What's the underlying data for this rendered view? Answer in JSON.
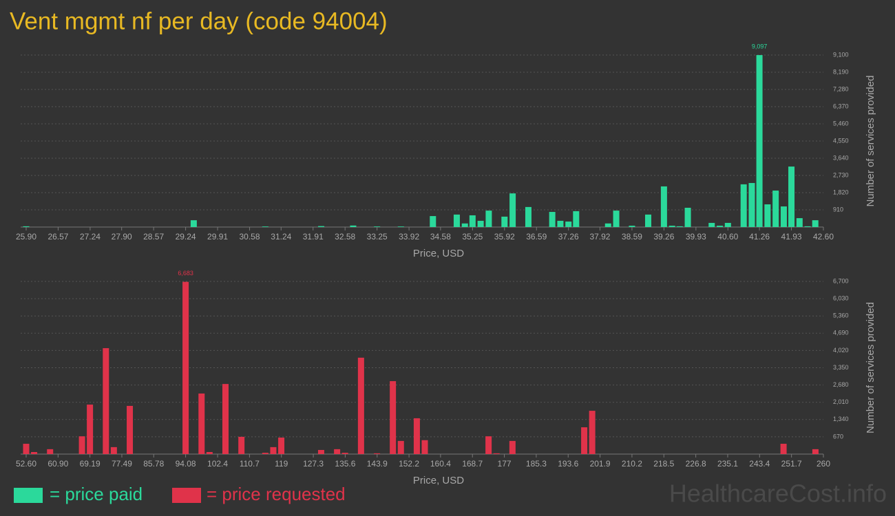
{
  "title": "Vent mgmt nf per day (code 94004)",
  "watermark": "HealthcareCost.info",
  "chart_data": [
    {
      "type": "bar",
      "x_label": "Price, USD",
      "y_label": "Number of services provided",
      "x": [
        25.9,
        29.41,
        30.91,
        32.08,
        32.75,
        33.25,
        33.75,
        34.42,
        34.92,
        35.09,
        35.25,
        35.42,
        35.59,
        35.92,
        36.09,
        36.42,
        36.92,
        37.09,
        37.26,
        37.42,
        38.09,
        38.26,
        38.59,
        38.93,
        39.26,
        39.43,
        39.59,
        39.76,
        40.26,
        40.43,
        40.6,
        40.93,
        41.1,
        41.26,
        41.43,
        41.6,
        41.77,
        41.93,
        42.1,
        42.27,
        42.43
      ],
      "series": [
        {
          "name": "= price paid",
          "color": "#2bd99b",
          "values": [
            40,
            360,
            30,
            50,
            80,
            30,
            30,
            580,
            660,
            190,
            620,
            330,
            870,
            550,
            1780,
            1060,
            800,
            330,
            290,
            840,
            190,
            870,
            70,
            660,
            2150,
            70,
            40,
            1020,
            220,
            70,
            220,
            2260,
            2330,
            9097,
            1200,
            1930,
            1090,
            3200,
            470,
            40,
            360
          ],
          "value_labels": [
            null,
            null,
            null,
            null,
            null,
            null,
            null,
            null,
            null,
            null,
            null,
            null,
            null,
            null,
            null,
            null,
            null,
            null,
            null,
            null,
            null,
            null,
            null,
            null,
            null,
            null,
            null,
            null,
            null,
            null,
            null,
            null,
            null,
            "9,097",
            null,
            null,
            null,
            null,
            null,
            null,
            null
          ]
        }
      ],
      "xlim": [
        25.9,
        42.6
      ],
      "xticks": [
        {
          "value": 25.9,
          "label": "25.90"
        },
        26.57,
        27.24,
        {
          "value": 27.9,
          "label": "27.90"
        },
        28.57,
        29.24,
        29.91,
        30.58,
        31.24,
        31.91,
        32.58,
        33.25,
        33.92,
        34.58,
        35.25,
        35.92,
        36.59,
        37.26,
        37.92,
        38.59,
        39.26,
        39.93,
        {
          "value": 40.6,
          "label": "40.60"
        },
        41.26,
        41.93,
        {
          "value": 42.6,
          "label": "42.60"
        }
      ],
      "ylim": [
        0,
        9100
      ],
      "yticks": [
        910,
        {
          "value": 1820,
          "label": "1,820"
        },
        {
          "value": 2730,
          "label": "2,730"
        },
        {
          "value": 3640,
          "label": "3,640"
        },
        {
          "value": 4550,
          "label": "4,550"
        },
        {
          "value": 5460,
          "label": "5,460"
        },
        {
          "value": 6370,
          "label": "6,370"
        },
        {
          "value": 7280,
          "label": "7,280"
        },
        {
          "value": 8190,
          "label": "8,190"
        },
        {
          "value": 9100,
          "label": "9,100"
        }
      ],
      "grid": true
    },
    {
      "type": "bar",
      "x_label": "Price, USD",
      "y_label": "Number of services provided",
      "x": [
        52.6,
        54.67,
        58.82,
        67.12,
        69.19,
        73.34,
        75.41,
        79.56,
        94.08,
        98.23,
        100.3,
        104.45,
        108.6,
        114.82,
        116.89,
        118.97,
        129.34,
        133.49,
        135.56,
        139.71,
        143.86,
        148.0,
        150.08,
        154.23,
        156.3,
        172.89,
        174.97,
        179.11,
        197.78,
        199.85,
        249.63,
        257.93
      ],
      "series": [
        {
          "name": "= price requested",
          "color": "#e0334a",
          "values": [
            400,
            80,
            190,
            690,
            1920,
            4110,
            270,
            1870,
            6683,
            2350,
            80,
            2720,
            670,
            50,
            270,
            640,
            160,
            190,
            50,
            3740,
            30,
            2830,
            510,
            1390,
            540,
            690,
            30,
            510,
            1040,
            1680,
            400,
            190
          ],
          "value_labels": [
            null,
            null,
            null,
            null,
            null,
            null,
            null,
            null,
            "6,683",
            null,
            null,
            null,
            null,
            null,
            null,
            null,
            null,
            null,
            null,
            null,
            null,
            null,
            null,
            null,
            null,
            null,
            null,
            null,
            null,
            null,
            null,
            null
          ]
        }
      ],
      "xlim": [
        52.6,
        260
      ],
      "xticks": [
        {
          "value": 52.6,
          "label": "52.60"
        },
        {
          "value": 60.9,
          "label": "60.90"
        },
        69.19,
        77.49,
        85.78,
        94.08,
        102.4,
        110.7,
        119,
        127.3,
        135.6,
        143.9,
        152.2,
        160.4,
        168.7,
        177,
        185.3,
        193.6,
        201.9,
        210.2,
        218.5,
        226.8,
        235.1,
        243.4,
        251.7,
        260
      ],
      "ylim": [
        0,
        6700
      ],
      "yticks": [
        670,
        {
          "value": 1340,
          "label": "1,340"
        },
        {
          "value": 2010,
          "label": "2,010"
        },
        {
          "value": 2680,
          "label": "2,680"
        },
        {
          "value": 3350,
          "label": "3,350"
        },
        {
          "value": 4020,
          "label": "4,020"
        },
        {
          "value": 4690,
          "label": "4,690"
        },
        {
          "value": 5360,
          "label": "5,360"
        },
        {
          "value": 6030,
          "label": "6,030"
        },
        {
          "value": 6700,
          "label": "6,700"
        }
      ],
      "grid": true
    }
  ]
}
